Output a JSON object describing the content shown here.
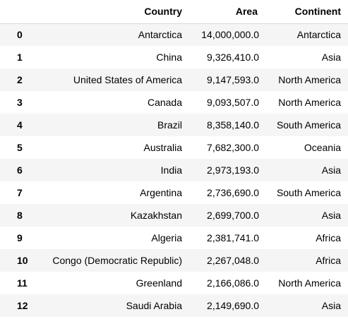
{
  "table": {
    "index_header": "",
    "columns": [
      "Country",
      "Area",
      "Continent"
    ],
    "rows": [
      {
        "index": "0",
        "country": "Antarctica",
        "area": "14,000,000.0",
        "continent": "Antarctica"
      },
      {
        "index": "1",
        "country": "China",
        "area": "9,326,410.0",
        "continent": "Asia"
      },
      {
        "index": "2",
        "country": "United States of America",
        "area": "9,147,593.0",
        "continent": "North America"
      },
      {
        "index": "3",
        "country": "Canada",
        "area": "9,093,507.0",
        "continent": "North America"
      },
      {
        "index": "4",
        "country": "Brazil",
        "area": "8,358,140.0",
        "continent": "South America"
      },
      {
        "index": "5",
        "country": "Australia",
        "area": "7,682,300.0",
        "continent": "Oceania"
      },
      {
        "index": "6",
        "country": "India",
        "area": "2,973,193.0",
        "continent": "Asia"
      },
      {
        "index": "7",
        "country": "Argentina",
        "area": "2,736,690.0",
        "continent": "South America"
      },
      {
        "index": "8",
        "country": "Kazakhstan",
        "area": "2,699,700.0",
        "continent": "Asia"
      },
      {
        "index": "9",
        "country": "Algeria",
        "area": "2,381,741.0",
        "continent": "Africa"
      },
      {
        "index": "10",
        "country": "Congo (Democratic Republic)",
        "area": "2,267,048.0",
        "continent": "Africa"
      },
      {
        "index": "11",
        "country": "Greenland",
        "area": "2,166,086.0",
        "continent": "North America"
      },
      {
        "index": "12",
        "country": "Saudi Arabia",
        "area": "2,149,690.0",
        "continent": "Asia"
      }
    ]
  }
}
